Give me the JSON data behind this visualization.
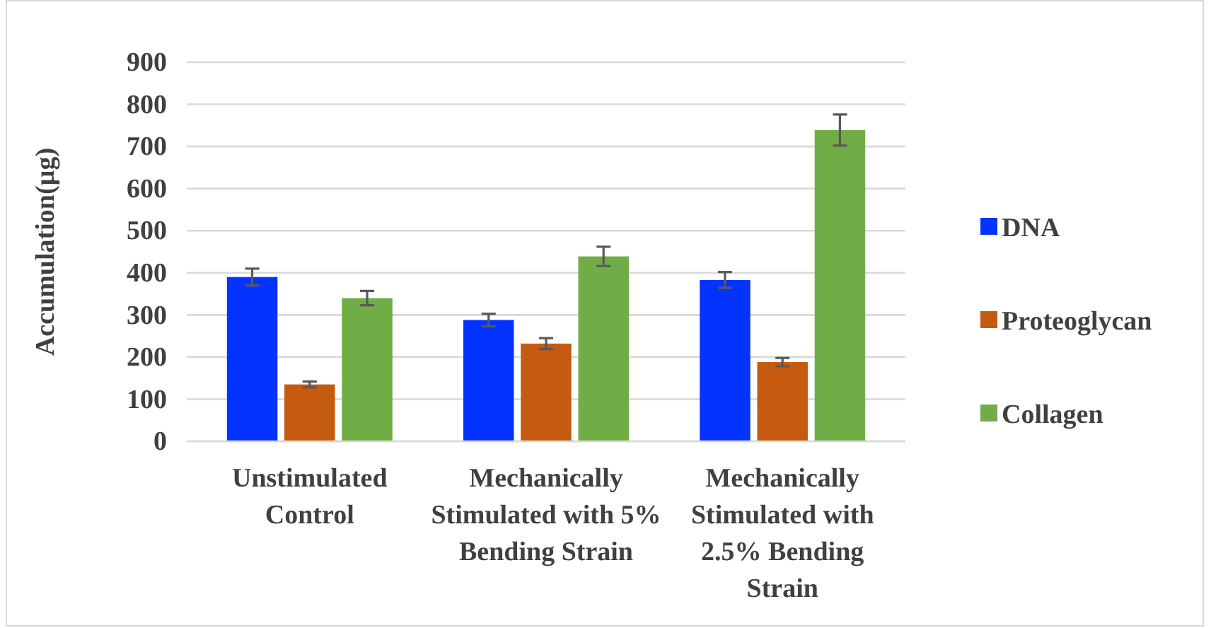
{
  "chart_data": {
    "type": "bar",
    "ylabel": "Accumulation(µg)",
    "categories": [
      "Unstimulated Control",
      "Mechanically Stimulated with 5% Bending Strain",
      "Mechanically Stimulated with 2.5% Bending Strain"
    ],
    "series": [
      {
        "name": "DNA",
        "color": "#0433ff",
        "values": [
          390,
          288,
          383
        ],
        "errors": [
          20,
          15,
          19
        ]
      },
      {
        "name": "Proteoglycan",
        "color": "#c55a11",
        "values": [
          135,
          232,
          188
        ],
        "errors": [
          7,
          13,
          10
        ]
      },
      {
        "name": "Collagen",
        "color": "#70ad47",
        "values": [
          340,
          439,
          739
        ],
        "errors": [
          17,
          23,
          37
        ]
      }
    ],
    "ylim": [
      0,
      900
    ],
    "yticks": [
      0,
      100,
      200,
      300,
      400,
      500,
      600,
      700,
      800,
      900
    ],
    "grid": "y",
    "legend": "right"
  }
}
